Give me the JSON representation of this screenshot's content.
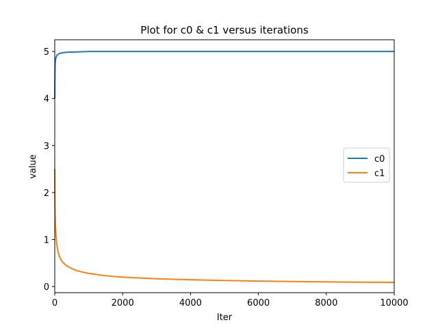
{
  "chart_data": {
    "type": "line",
    "title": "Plot for c0 & c1 versus iterations",
    "xlabel": "Iter",
    "ylabel": "value",
    "xlim": [
      0,
      10000
    ],
    "ylim": [
      -0.13,
      5.25
    ],
    "xticks": [
      0,
      2000,
      4000,
      6000,
      8000,
      10000
    ],
    "yticks": [
      0,
      1,
      2,
      3,
      4,
      5
    ],
    "grid": false,
    "legend_position": "center-right",
    "series": [
      {
        "name": "c0",
        "color": "#1f77b4",
        "x": [
          0,
          5,
          10,
          20,
          40,
          60,
          80,
          100,
          150,
          200,
          300,
          400,
          600,
          800,
          1000,
          1500,
          2000,
          3000,
          4000,
          5000,
          6000,
          7000,
          8000,
          9000,
          10000
        ],
        "y": [
          4.0,
          4.5,
          4.72,
          4.82,
          4.88,
          4.91,
          4.93,
          4.94,
          4.96,
          4.97,
          4.98,
          4.985,
          4.99,
          4.995,
          5.0,
          5.0,
          5.0,
          5.0,
          5.0,
          5.0,
          5.0,
          5.0,
          5.0,
          5.0,
          5.0
        ]
      },
      {
        "name": "c1",
        "color": "#ff7f0e",
        "x": [
          0,
          5,
          10,
          20,
          40,
          60,
          80,
          100,
          150,
          200,
          300,
          400,
          600,
          800,
          1000,
          1500,
          2000,
          3000,
          4000,
          5000,
          6000,
          7000,
          8000,
          9000,
          10000
        ],
        "y": [
          2.5,
          1.9,
          1.6,
          1.3,
          1.05,
          0.9,
          0.8,
          0.73,
          0.62,
          0.55,
          0.47,
          0.42,
          0.35,
          0.31,
          0.28,
          0.23,
          0.2,
          0.165,
          0.145,
          0.128,
          0.116,
          0.107,
          0.099,
          0.093,
          0.088
        ]
      }
    ]
  }
}
